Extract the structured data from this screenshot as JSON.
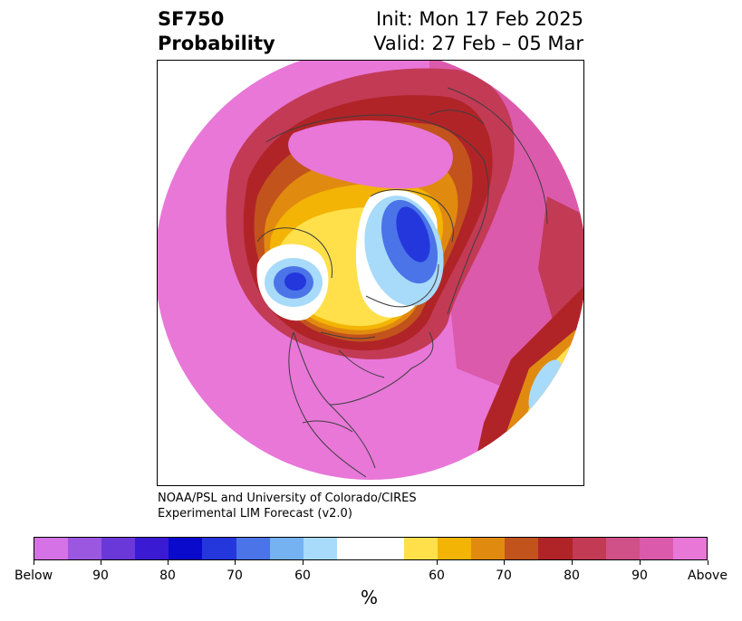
{
  "header": {
    "title_line1": "SF750",
    "title_line2": "Probability",
    "init_text": "Init: Mon 17 Feb 2025",
    "valid_text": "Valid: 27 Feb – 05 Mar"
  },
  "credit": {
    "line1": "NOAA/PSL and University of Colorado/CIRES",
    "line2": "Experimental LIM Forecast (v2.0)"
  },
  "colorbar": {
    "units_label": "%",
    "colors": [
      "#d572e6",
      "#9b57e0",
      "#6a38d8",
      "#3a1ad2",
      "#0a0acd",
      "#2437dc",
      "#4a74e8",
      "#74b2f2",
      "#a8dafa",
      "#ffffff",
      "#ffe04a",
      "#f3b405",
      "#e18a10",
      "#c2531c",
      "#b02428",
      "#c33a55",
      "#d05088",
      "#dc5aab",
      "#e877d8"
    ],
    "tick_labels": [
      "Below",
      "90",
      "80",
      "70",
      "60",
      "60",
      "70",
      "80",
      "90",
      "Above"
    ]
  },
  "map": {
    "projection_note": "",
    "colors": {
      "above_pink": "#e877d8",
      "pink_90": "#dc5aab",
      "crimson": "#c33a55",
      "red": "#b02428",
      "orange_dark": "#c2531c",
      "orange": "#e18a10",
      "gold": "#f3b405",
      "yellow": "#ffe04a",
      "white": "#ffffff",
      "lightblue": "#a8dafa",
      "blue": "#4a74e8",
      "deepblue": "#2437dc",
      "coast": "#3d3d3d"
    }
  }
}
